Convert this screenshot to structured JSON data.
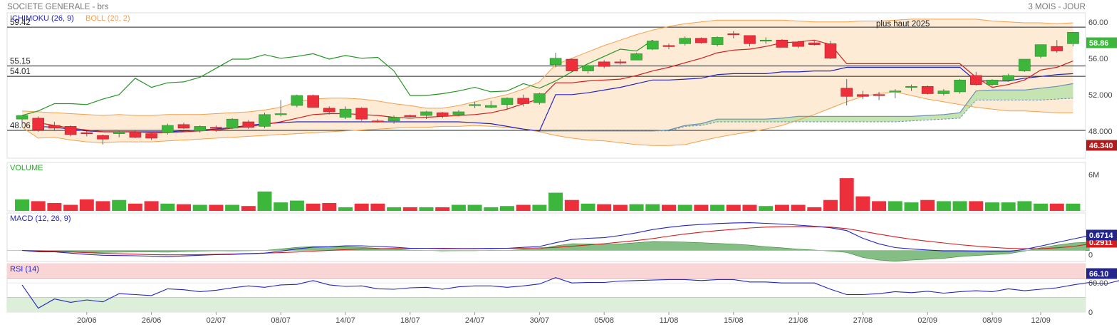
{
  "header": {
    "title": "SOCIETE GENERALE - brs",
    "period": "3 MOIS - JOUR"
  },
  "colors": {
    "up": "#3cb73c",
    "down": "#ec2f3a",
    "ichimoku_tenkan": "#d51d1d",
    "ichimoku_kijun": "#2424c4",
    "chikou": "#249624",
    "boll": "#f3a04c",
    "boll_fill": "#fdebd6",
    "cloud_fill": "#c6e3b2",
    "macd_line": "#2424c4",
    "signal_line": "#d51d1d",
    "histogram": "#5ca85c",
    "rsi_line": "#2424c4",
    "rsi_overbought": "#f9d5d5",
    "rsi_oversold": "#dcefd8",
    "last_price_tag": "#3cb73c",
    "min_tag": "#b01c1c"
  },
  "chart_data": [
    {
      "type": "candlestick",
      "name": "price",
      "legend": [
        "ICHIMOKU (26, 9)",
        "BOLL (20, 2)"
      ],
      "annotation": "plus haut 2025",
      "ylim": [
        45,
        61
      ],
      "yticks": [
        {
          "value": 60,
          "label": "60.00"
        },
        {
          "value": 56,
          "label": "56.00"
        },
        {
          "value": 52,
          "label": "52.000"
        },
        {
          "value": 48,
          "label": "48.000"
        }
      ],
      "hlines": [
        {
          "value": 59.42,
          "label": "59.42"
        },
        {
          "value": 55.15,
          "label": "55.15"
        },
        {
          "value": 54.01,
          "label": "54.01"
        },
        {
          "value": 48.06,
          "label": "48.06"
        }
      ],
      "last_price_tag": "58.86",
      "min_tag": "46.340",
      "x_tick_labels": [
        "20/06",
        "26/06",
        "02/07",
        "08/07",
        "14/07",
        "18/07",
        "24/07",
        "30/07",
        "05/08",
        "11/08",
        "15/08",
        "21/08",
        "27/08",
        "02/09",
        "08/09",
        "12/09"
      ],
      "x_tick_index": [
        4,
        8,
        12,
        16,
        20,
        24,
        28,
        32,
        36,
        40,
        44,
        48,
        52,
        56,
        60,
        63
      ],
      "ohlc": [
        [
          49.3,
          49.7,
          48.4,
          49.7
        ],
        [
          49.4,
          49.6,
          47.9,
          48.1
        ],
        [
          48.6,
          49.0,
          48.1,
          48.3
        ],
        [
          48.5,
          48.6,
          47.4,
          47.6
        ],
        [
          47.8,
          48.0,
          47.4,
          47.7
        ],
        [
          47.5,
          47.6,
          46.5,
          47.1
        ],
        [
          47.7,
          48.1,
          47.3,
          47.9
        ],
        [
          47.9,
          48.0,
          47.2,
          47.3
        ],
        [
          47.7,
          47.8,
          47.0,
          47.2
        ],
        [
          47.8,
          48.8,
          47.6,
          48.6
        ],
        [
          48.7,
          48.9,
          48.2,
          48.3
        ],
        [
          48.0,
          48.6,
          47.8,
          48.5
        ],
        [
          48.4,
          48.6,
          47.9,
          48.3
        ],
        [
          48.3,
          49.4,
          48.2,
          49.3
        ],
        [
          49.0,
          49.2,
          48.2,
          48.4
        ],
        [
          48.5,
          50.0,
          48.3,
          49.8
        ],
        [
          49.8,
          51.4,
          49.6,
          49.9
        ],
        [
          50.8,
          52.0,
          50.6,
          51.9
        ],
        [
          51.9,
          52.0,
          50.6,
          50.6
        ],
        [
          50.5,
          50.7,
          49.8,
          50.1
        ],
        [
          49.5,
          50.7,
          49.3,
          50.4
        ],
        [
          50.5,
          50.6,
          49.1,
          49.3
        ],
        [
          49.1,
          49.3,
          48.9,
          49.0
        ],
        [
          49.1,
          49.7,
          48.8,
          49.5
        ],
        [
          49.7,
          49.8,
          49.5,
          49.6
        ],
        [
          49.7,
          50.2,
          49.3,
          50.1
        ],
        [
          50.0,
          50.1,
          49.4,
          49.6
        ],
        [
          49.8,
          50.3,
          49.6,
          50.1
        ],
        [
          50.8,
          51.2,
          50.5,
          50.9
        ],
        [
          50.6,
          51.3,
          50.5,
          50.8
        ],
        [
          50.9,
          51.7,
          50.3,
          51.6
        ],
        [
          51.6,
          52.0,
          50.7,
          51.0
        ],
        [
          51.1,
          52.2,
          50.9,
          52.1
        ],
        [
          55.3,
          56.6,
          55.0,
          56.0
        ],
        [
          55.9,
          56.0,
          54.5,
          54.6
        ],
        [
          54.6,
          55.3,
          54.3,
          55.2
        ],
        [
          55.6,
          55.8,
          54.9,
          55.1
        ],
        [
          55.6,
          55.9,
          55.3,
          55.5
        ],
        [
          55.8,
          56.6,
          55.8,
          56.5
        ],
        [
          57.0,
          58.0,
          56.9,
          57.9
        ],
        [
          57.4,
          57.6,
          57.0,
          57.3
        ],
        [
          57.6,
          58.4,
          57.4,
          58.2
        ],
        [
          58.2,
          58.3,
          57.6,
          57.7
        ],
        [
          57.5,
          58.4,
          57.3,
          58.3
        ],
        [
          58.7,
          59.0,
          58.2,
          58.6
        ],
        [
          58.5,
          58.5,
          57.3,
          57.6
        ],
        [
          57.9,
          58.3,
          57.6,
          58.0
        ],
        [
          58.0,
          58.1,
          57.2,
          57.2
        ],
        [
          57.8,
          57.9,
          57.1,
          57.3
        ],
        [
          57.7,
          57.9,
          57.4,
          57.5
        ],
        [
          57.6,
          57.9,
          55.9,
          56.0
        ],
        [
          52.7,
          53.7,
          50.8,
          51.8
        ],
        [
          52.0,
          52.4,
          51.5,
          51.8
        ],
        [
          52.0,
          52.3,
          51.4,
          51.9
        ],
        [
          52.4,
          52.6,
          51.6,
          52.4
        ],
        [
          52.8,
          53.1,
          52.4,
          52.9
        ],
        [
          52.9,
          53.0,
          52.0,
          52.1
        ],
        [
          52.1,
          52.6,
          51.9,
          52.4
        ],
        [
          52.3,
          53.7,
          52.1,
          53.6
        ],
        [
          54.1,
          54.5,
          53.0,
          53.1
        ],
        [
          53.1,
          53.7,
          52.9,
          53.6
        ],
        [
          53.6,
          54.3,
          53.4,
          54.1
        ],
        [
          54.6,
          55.8,
          54.5,
          55.9
        ],
        [
          56.2,
          57.5,
          56.0,
          57.5
        ],
        [
          57.3,
          58.0,
          56.6,
          56.8
        ],
        [
          57.6,
          58.9,
          57.3,
          58.86
        ]
      ],
      "boll_upper": [
        50.2,
        50.1,
        50.0,
        49.9,
        49.8,
        49.7,
        49.8,
        49.7,
        49.7,
        49.8,
        49.8,
        49.8,
        49.9,
        50.0,
        50.1,
        50.3,
        50.6,
        51.2,
        51.5,
        51.6,
        51.6,
        51.5,
        51.3,
        51.0,
        50.8,
        50.5,
        50.5,
        50.8,
        51.2,
        51.6,
        52.0,
        52.6,
        53.4,
        55.3,
        56.0,
        56.7,
        57.4,
        58.0,
        58.6,
        59.1,
        59.5,
        59.8,
        60.0,
        60.2,
        60.2,
        60.2,
        60.2,
        60.2,
        60.1,
        60.0,
        60.0,
        60.0,
        60.1,
        60.1,
        60.2,
        60.3,
        60.3,
        60.3,
        60.3,
        60.3,
        60.1,
        60.0,
        59.9,
        59.9,
        59.8,
        59.9
      ],
      "boll_lower": [
        48.4,
        47.2,
        47.3,
        47.0,
        46.8,
        46.7,
        46.8,
        46.8,
        46.8,
        46.9,
        47.0,
        47.1,
        47.2,
        47.3,
        47.4,
        47.5,
        47.6,
        47.7,
        47.8,
        47.9,
        48.0,
        48.1,
        48.2,
        48.3,
        48.4,
        48.4,
        48.5,
        48.5,
        48.6,
        48.5,
        48.4,
        48.2,
        47.9,
        47.5,
        47.2,
        47.0,
        46.9,
        46.7,
        46.5,
        46.4,
        46.4,
        46.5,
        46.9,
        47.3,
        47.6,
        47.9,
        48.2,
        48.6,
        49.2,
        49.8,
        50.5,
        51.2,
        51.8,
        52.1,
        52.3,
        51.9,
        51.5,
        51.2,
        50.9,
        50.6,
        50.4,
        50.2,
        50.2,
        50.1,
        50.0,
        50.0
      ],
      "tenkan": [
        null,
        48.9,
        48.6,
        48.3,
        48.1,
        47.9,
        47.9,
        47.9,
        47.8,
        47.8,
        47.9,
        48.0,
        48.1,
        48.3,
        48.5,
        48.7,
        49.0,
        49.4,
        49.8,
        49.9,
        49.9,
        49.8,
        49.7,
        49.5,
        49.4,
        49.5,
        49.6,
        49.7,
        49.8,
        50.0,
        50.4,
        51.0,
        51.5,
        53.3,
        53.3,
        53.5,
        53.6,
        53.7,
        54.1,
        54.6,
        55.0,
        55.5,
        56.0,
        56.6,
        56.9,
        57.0,
        57.3,
        57.7,
        57.8,
        58.0,
        57.5,
        55.4,
        55.4,
        55.4,
        55.4,
        55.4,
        55.4,
        55.4,
        55.4,
        53.9,
        52.8,
        53.1,
        53.6,
        54.7,
        55.0,
        55.7
      ],
      "kijun": [
        null,
        48.5,
        48.4,
        48.2,
        48.0,
        47.9,
        47.9,
        47.9,
        47.9,
        47.9,
        48.0,
        48.1,
        48.2,
        48.4,
        48.6,
        48.8,
        48.9,
        49.0,
        49.0,
        49.0,
        49.0,
        49.0,
        49.0,
        49.0,
        49.0,
        49.0,
        49.0,
        49.0,
        48.9,
        48.8,
        48.5,
        48.2,
        48.0,
        52.0,
        52.0,
        52.2,
        52.5,
        52.8,
        53.2,
        53.6,
        53.6,
        53.7,
        53.8,
        54.2,
        54.3,
        54.3,
        54.3,
        54.5,
        54.5,
        54.6,
        54.6,
        55.0,
        55.0,
        55.0,
        55.0,
        55.0,
        55.0,
        55.0,
        55.0,
        53.5,
        53.5,
        53.5,
        53.8,
        54.0,
        54.2,
        54.3
      ],
      "senkou_a": [
        null,
        null,
        null,
        null,
        null,
        null,
        null,
        null,
        null,
        null,
        null,
        null,
        null,
        null,
        null,
        null,
        null,
        null,
        null,
        null,
        null,
        null,
        null,
        null,
        null,
        null,
        null,
        null,
        null,
        null,
        null,
        null,
        48.0,
        48.0,
        48.0,
        48.0,
        48.0,
        48.0,
        48.0,
        48.0,
        48.1,
        48.6,
        48.8,
        49.3,
        49.3,
        49.3,
        49.3,
        49.4,
        49.6,
        49.6,
        49.6,
        49.6,
        49.6,
        49.6,
        49.6,
        49.6,
        49.7,
        49.8,
        50.0,
        52.4,
        52.5,
        52.5,
        52.5,
        52.7,
        52.9,
        53.2
      ],
      "senkou_b": [
        null,
        null,
        null,
        null,
        null,
        null,
        null,
        null,
        null,
        null,
        null,
        null,
        null,
        null,
        null,
        null,
        null,
        null,
        null,
        null,
        null,
        null,
        null,
        null,
        null,
        null,
        null,
        null,
        null,
        null,
        null,
        null,
        48.0,
        48.0,
        48.0,
        48.0,
        48.0,
        48.0,
        48.0,
        48.0,
        48.0,
        48.5,
        48.6,
        49.0,
        49.0,
        49.0,
        49.0,
        49.0,
        49.0,
        49.0,
        49.0,
        49.0,
        49.0,
        49.0,
        49.0,
        49.1,
        49.2,
        49.3,
        49.4,
        51.4,
        51.4,
        51.4,
        51.4,
        51.4,
        51.5,
        51.6
      ],
      "chikou": [
        49.7,
        50.2,
        51.0,
        51.0,
        50.9,
        51.5,
        52.0,
        53.8,
        52.8,
        53.3,
        53.4,
        53.9,
        54.9,
        55.9,
        55.9,
        56.4,
        56.0,
        56.2,
        56.5,
        55.9,
        56.3,
        56.0,
        56.1,
        54.6,
        51.9,
        51.9,
        52.1,
        52.4,
        52.8,
        52.3,
        52.4,
        53.2,
        52.7,
        53.5,
        54.5,
        55.4,
        56.2,
        57.0,
        56.8,
        58.0
      ]
    },
    {
      "type": "bar",
      "name": "volume",
      "legend": "VOLUME",
      "yticks": [
        {
          "value": 6,
          "label": "6M"
        }
      ],
      "ylim": [
        0,
        8
      ],
      "values": [
        1.9,
        1.6,
        1.3,
        1.0,
        1.9,
        1.6,
        1.8,
        1.2,
        1.6,
        1.2,
        1.1,
        1.0,
        1.0,
        1.0,
        0.8,
        3.2,
        1.4,
        1.7,
        1.2,
        1.3,
        0.6,
        1.2,
        1.2,
        0.6,
        0.6,
        0.6,
        0.6,
        1.0,
        1.0,
        0.6,
        0.8,
        1.0,
        1.0,
        3.0,
        1.8,
        1.2,
        1.1,
        1.0,
        1.1,
        1.1,
        1.0,
        1.0,
        1.0,
        1.0,
        1.0,
        1.0,
        0.8,
        1.0,
        1.0,
        0.6,
        1.8,
        5.4,
        2.4,
        1.6,
        1.6,
        1.4,
        1.8,
        1.6,
        1.6,
        1.6,
        1.4,
        1.4,
        1.6,
        1.2,
        1.2,
        1.2
      ]
    },
    {
      "type": "line",
      "name": "macd",
      "legend": "MACD (12, 26, 9)",
      "last_value": "0.6714",
      "second_value": "0.2911",
      "yticks": [
        {
          "value": 0,
          "label": "0"
        }
      ],
      "ylim": [
        -0.5,
        1.7
      ],
      "macd": [
        0.0,
        -0.06,
        -0.06,
        -0.12,
        -0.18,
        -0.22,
        -0.23,
        -0.24,
        -0.26,
        -0.28,
        -0.25,
        -0.22,
        -0.19,
        -0.18,
        -0.15,
        -0.12,
        -0.03,
        0.07,
        0.15,
        0.17,
        0.21,
        0.21,
        0.18,
        0.15,
        0.1,
        0.1,
        0.08,
        0.08,
        0.08,
        0.1,
        0.1,
        0.14,
        0.18,
        0.35,
        0.5,
        0.55,
        0.58,
        0.68,
        0.8,
        0.95,
        1.05,
        1.13,
        1.18,
        1.22,
        1.25,
        1.26,
        1.23,
        1.2,
        1.15,
        1.1,
        1.03,
        0.9,
        0.55,
        0.3,
        0.13,
        0.07,
        0.02,
        -0.02,
        -0.02,
        -0.03,
        -0.05,
        -0.05,
        0.05,
        0.2,
        0.36,
        0.52,
        0.6714
      ],
      "signal": [
        0.0,
        -0.02,
        -0.04,
        -0.07,
        -0.1,
        -0.13,
        -0.15,
        -0.17,
        -0.19,
        -0.2,
        -0.2,
        -0.19,
        -0.18,
        -0.16,
        -0.14,
        -0.12,
        -0.1,
        -0.07,
        -0.03,
        0.0,
        0.04,
        0.07,
        0.08,
        0.09,
        0.09,
        0.1,
        0.1,
        0.09,
        0.09,
        0.09,
        0.1,
        0.1,
        0.11,
        0.14,
        0.19,
        0.25,
        0.31,
        0.38,
        0.45,
        0.54,
        0.65,
        0.75,
        0.83,
        0.9,
        0.96,
        1.02,
        1.06,
        1.08,
        1.09,
        1.08,
        1.06,
        0.99,
        0.87,
        0.74,
        0.62,
        0.51,
        0.42,
        0.34,
        0.26,
        0.2,
        0.14,
        0.1,
        0.08,
        0.08,
        0.12,
        0.18,
        0.2911
      ]
    },
    {
      "type": "line",
      "name": "rsi",
      "legend": "RSI (14)",
      "last_value": "66.10",
      "yticks": [
        {
          "value": 60,
          "label": "60.00"
        },
        {
          "value": 0,
          "label": "0"
        }
      ],
      "ylim": [
        0,
        100
      ],
      "overbought": 70,
      "oversold": 30,
      "values": [
        56,
        8,
        27,
        20,
        25,
        21,
        38,
        36,
        34,
        48,
        46,
        42,
        45,
        50,
        54,
        51,
        56,
        57,
        65,
        56,
        53,
        54,
        48,
        47,
        50,
        51,
        47,
        52,
        54,
        54,
        51,
        54,
        58,
        71,
        60,
        61,
        61,
        64,
        65,
        66,
        67,
        67,
        65,
        67,
        67,
        62,
        62,
        60,
        60,
        60,
        47,
        36,
        36,
        38,
        42,
        40,
        43,
        39,
        42,
        44,
        42,
        48,
        44,
        47,
        50,
        56,
        61,
        58,
        66
      ]
    }
  ]
}
